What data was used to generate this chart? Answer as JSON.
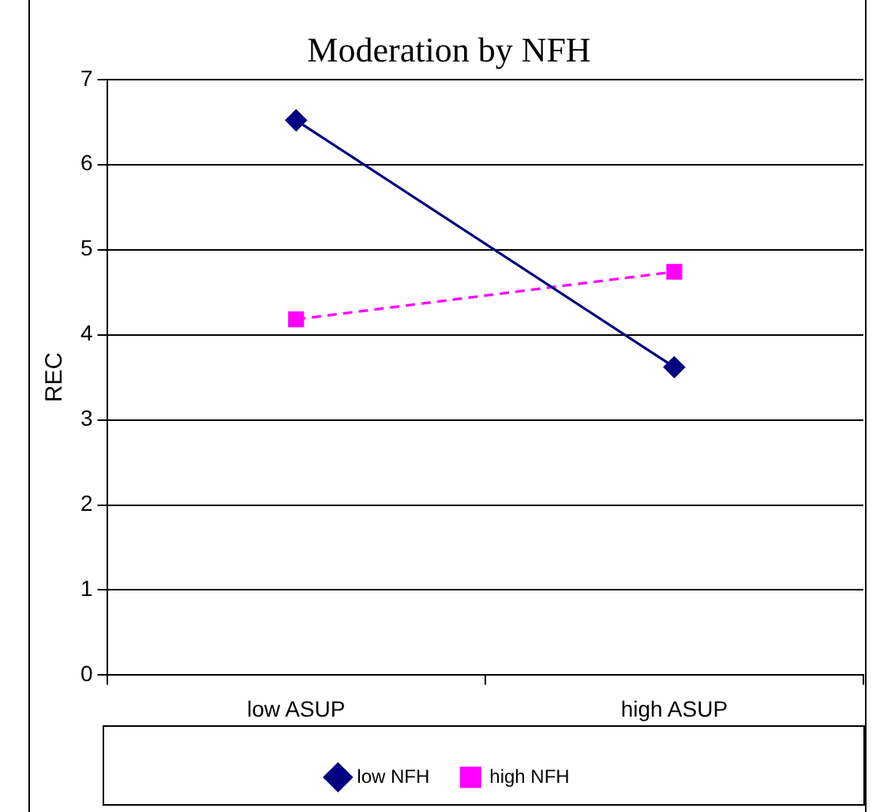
{
  "chart_data": {
    "type": "line",
    "title": "Moderation by NFH",
    "ylabel": "REC",
    "categories": [
      "low ASUP",
      "high ASUP"
    ],
    "series": [
      {
        "name": "low NFH",
        "color": "#000080",
        "values": [
          6.52,
          3.62
        ],
        "marker": "diamond",
        "line_style": "solid"
      },
      {
        "name": "high NFH",
        "color": "#ff00ff",
        "values": [
          4.18,
          4.74
        ],
        "marker": "square",
        "line_style": "dashed"
      }
    ],
    "ylim": [
      0,
      7
    ],
    "yticks": [
      0,
      1,
      2,
      3,
      4,
      5,
      6,
      7
    ],
    "grid": "y",
    "legend": "bottom"
  }
}
